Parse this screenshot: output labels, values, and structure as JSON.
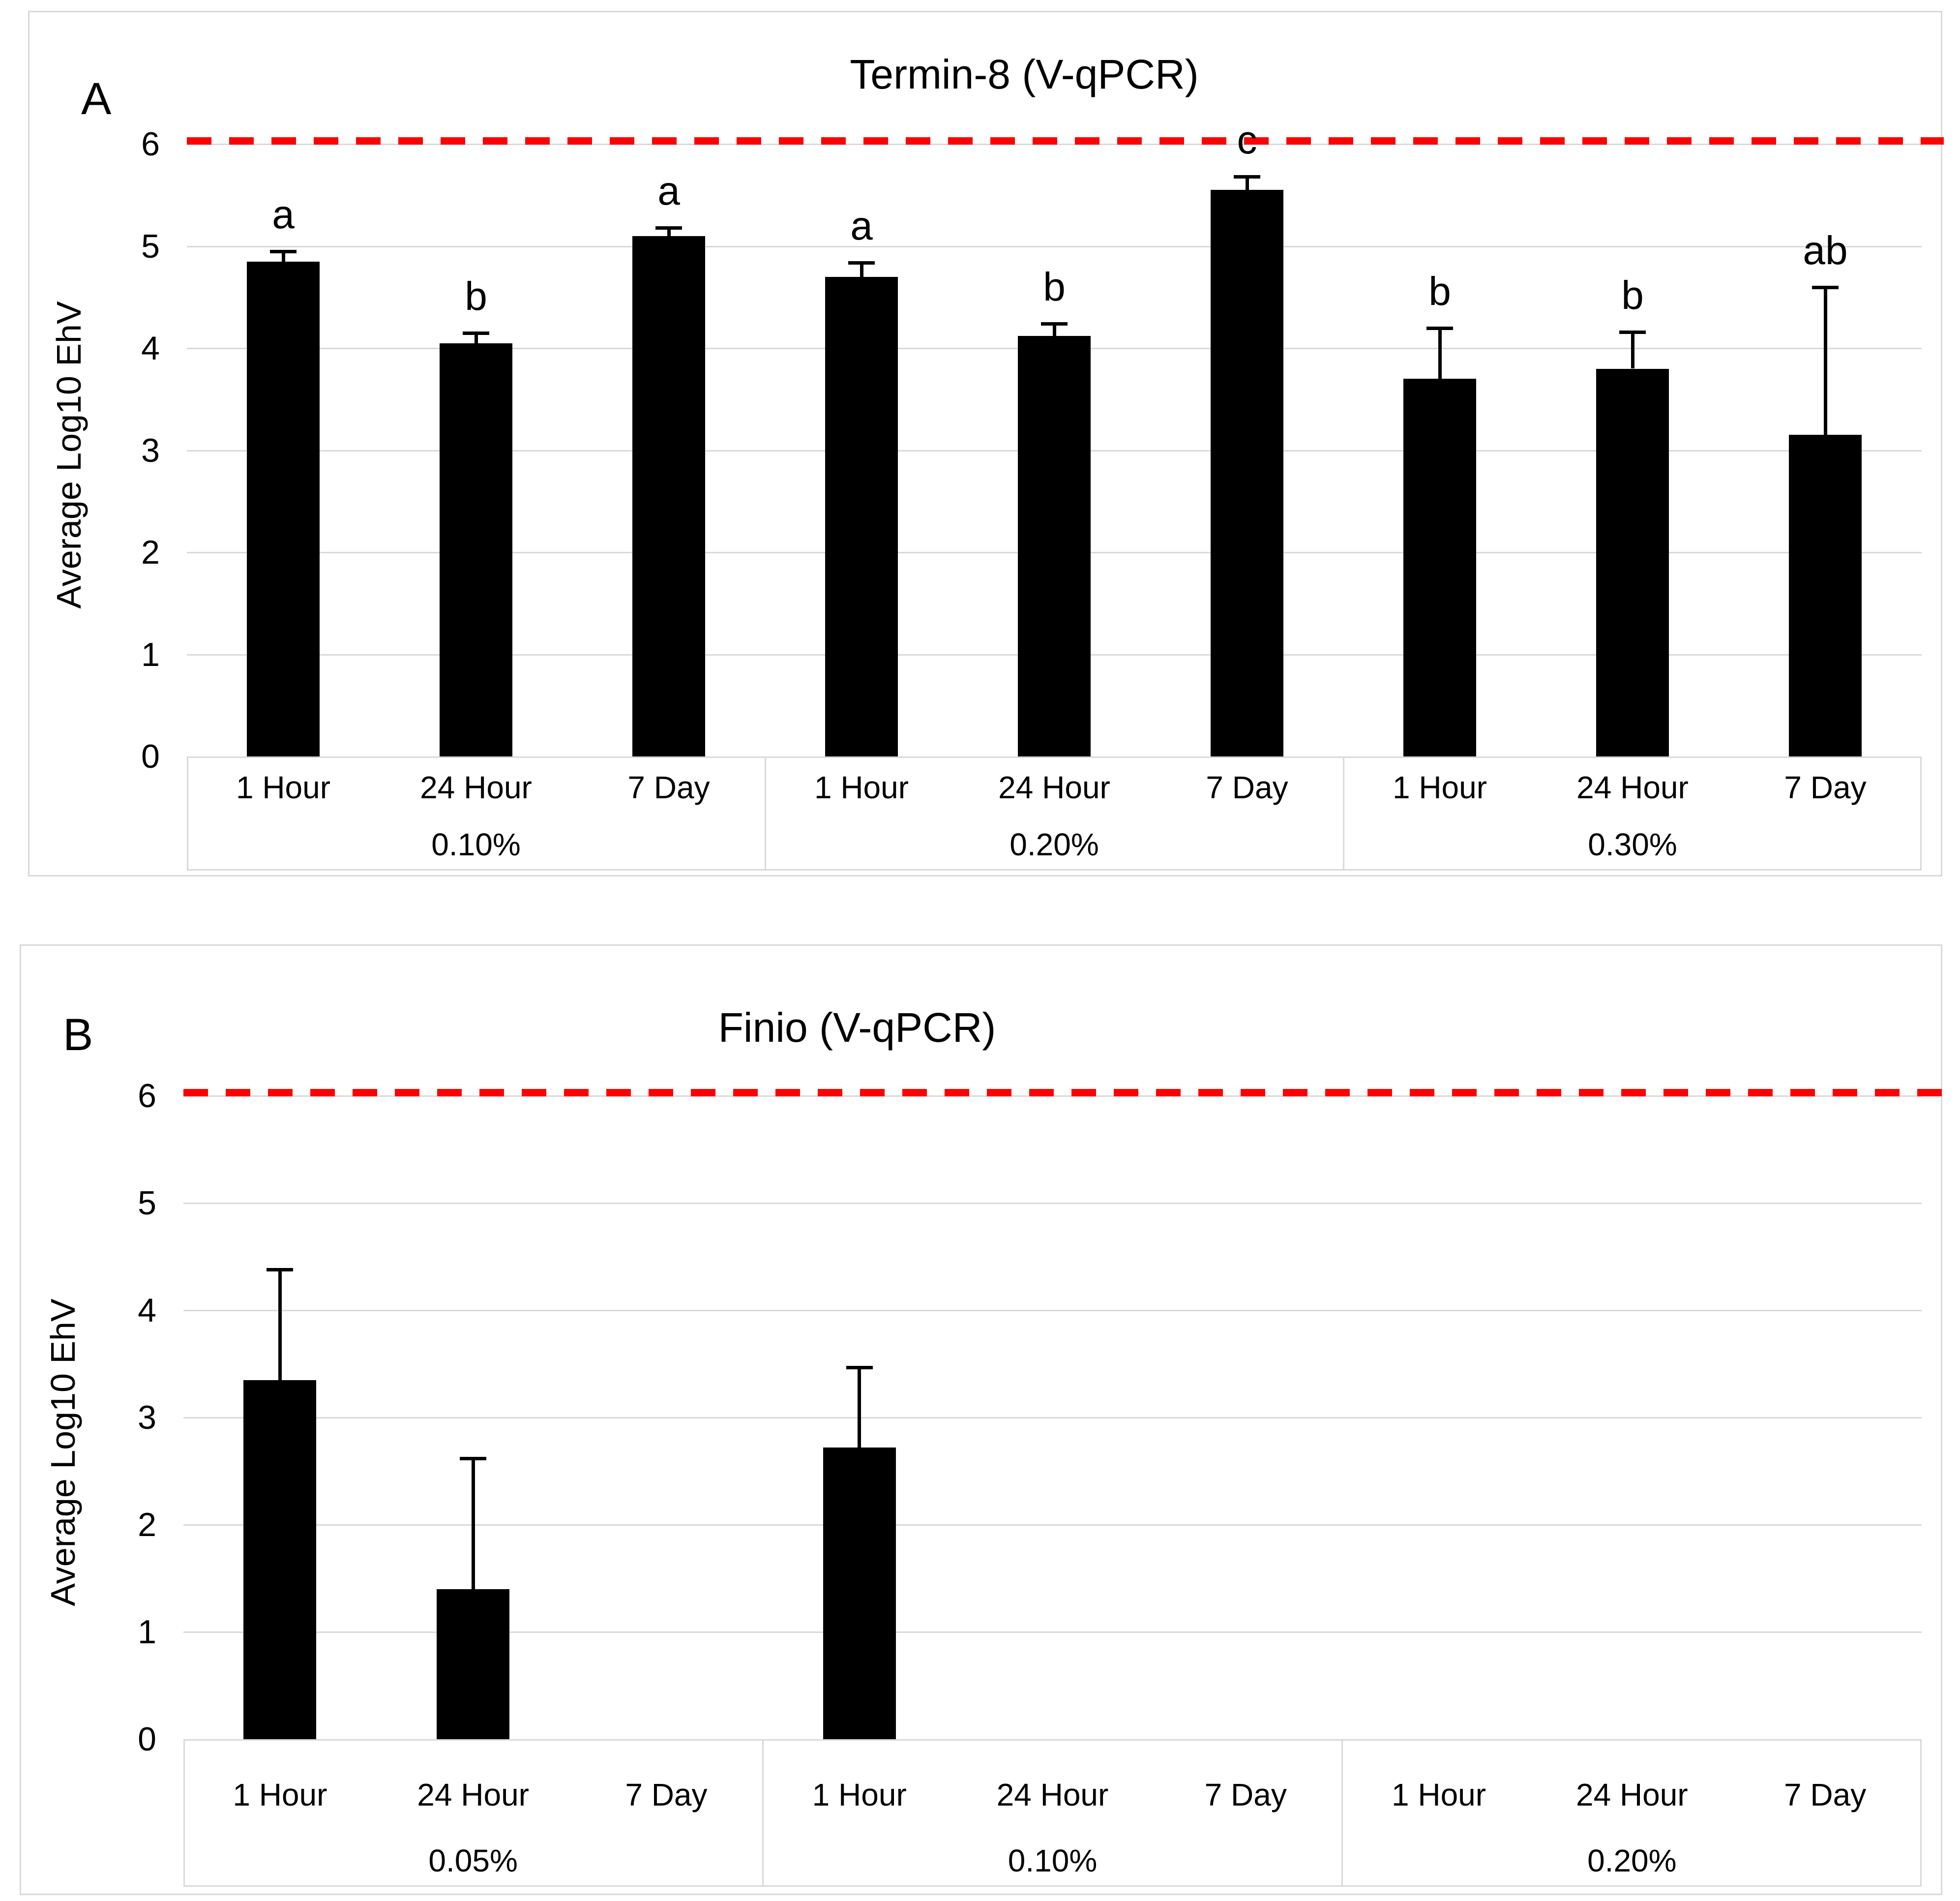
{
  "figure": {
    "background": "#ffffff",
    "panel_border_color": "#d9d9d9"
  },
  "chart_data": [
    {
      "type": "bar",
      "panel_label": "A",
      "title": "Termin-8 (V-qPCR)",
      "xlabel": "",
      "ylabel": "Average Log10 EhV",
      "ylim": [
        0,
        6
      ],
      "yticks": [
        0,
        1,
        2,
        3,
        4,
        5,
        6
      ],
      "grid": true,
      "grid_color": "#d9d9d9",
      "bar_color": "#000000",
      "reference_line": {
        "y": 6,
        "style": "dashed",
        "color": "#ff0000"
      },
      "legend": "none",
      "group_labels": [
        "0.10%",
        "0.20%",
        "0.30%"
      ],
      "categories": [
        "1 Hour",
        "24 Hour",
        "7 Day",
        "1 Hour",
        "24 Hour",
        "7 Day",
        "1 Hour",
        "24 Hour",
        "7 Day"
      ],
      "values": [
        4.85,
        4.05,
        5.1,
        4.7,
        4.12,
        5.55,
        3.7,
        3.8,
        3.15
      ],
      "errors_up": [
        0.1,
        0.1,
        0.08,
        0.14,
        0.12,
        0.13,
        0.5,
        0.36,
        1.45
      ],
      "sig_letters": [
        "a",
        "b",
        "a",
        "a",
        "b",
        "c",
        "b",
        "b",
        "ab"
      ]
    },
    {
      "type": "bar",
      "panel_label": "B",
      "title": "Finio (V-qPCR)",
      "xlabel": "",
      "ylabel": "Average Log10 EhV",
      "ylim": [
        0,
        6
      ],
      "yticks": [
        0,
        1,
        2,
        3,
        4,
        5,
        6
      ],
      "grid": true,
      "grid_color": "#d9d9d9",
      "bar_color": "#000000",
      "reference_line": {
        "y": 6,
        "style": "dashed",
        "color": "#ff0000"
      },
      "legend": "none",
      "group_labels": [
        "0.05%",
        "0.10%",
        "0.20%"
      ],
      "categories": [
        "1 Hour",
        "24 Hour",
        "7 Day",
        "1 Hour",
        "24 Hour",
        "7 Day",
        "1 Hour",
        "24 Hour",
        "7 Day"
      ],
      "values": [
        3.35,
        1.4,
        0,
        2.72,
        0,
        0,
        0,
        0,
        0
      ],
      "errors_up": [
        1.03,
        1.22,
        0,
        0.75,
        0,
        0,
        0,
        0,
        0
      ],
      "sig_letters": [
        "",
        "",
        "",
        "",
        "",
        "",
        "",
        "",
        ""
      ]
    }
  ]
}
